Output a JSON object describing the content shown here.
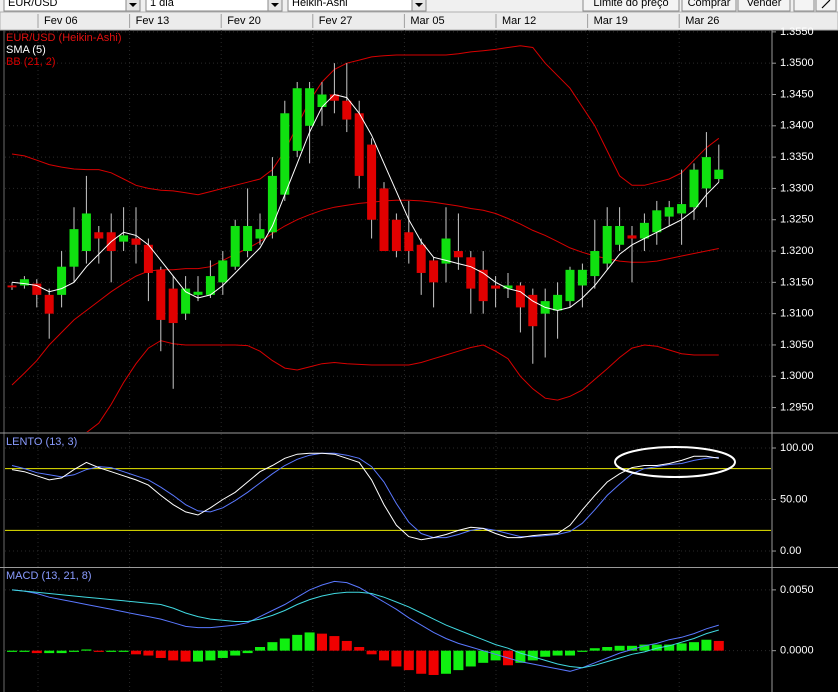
{
  "toolbar": {
    "symbol": "EUR/USD",
    "interval": "1 dia",
    "chart_style": "Heikin-Ashi",
    "buttons": [
      "Limite do preço",
      "Comprar",
      "Vender"
    ]
  },
  "dates": [
    "Fev 06",
    "Fev 13",
    "Fev 20",
    "Fev 27",
    "Mar 05",
    "Mar 12",
    "Mar 19",
    "Mar 26"
  ],
  "chart_data": [
    {
      "type": "candlestick",
      "title": "EUR/USD (Heikin-Ashi)",
      "title_color": "#e01010",
      "grid": true,
      "ylim": [
        1.2911,
        1.3553
      ],
      "yticks": [
        {
          "value": 1.355,
          "label": "1.3550"
        },
        {
          "value": 1.35,
          "label": "1.3500"
        },
        {
          "value": 1.345,
          "label": "1.3450"
        },
        {
          "value": 1.34,
          "label": "1.3400"
        },
        {
          "value": 1.335,
          "label": "1.3350"
        },
        {
          "value": 1.33,
          "label": "1.3300"
        },
        {
          "value": 1.325,
          "label": "1.3250"
        },
        {
          "value": 1.32,
          "label": "1.3200"
        },
        {
          "value": 1.315,
          "label": "1.3150"
        },
        {
          "value": 1.31,
          "label": "1.3100"
        },
        {
          "value": 1.305,
          "label": "1.3050"
        },
        {
          "value": 1.3,
          "label": "1.3000"
        },
        {
          "value": 1.295,
          "label": "1.2950"
        }
      ],
      "candles": {
        "up_color": "#10e010",
        "down_color": "#e00000",
        "open": [
          1.3145,
          1.3145,
          1.3148,
          1.313,
          1.313,
          1.3175,
          1.32,
          1.323,
          1.323,
          1.3215,
          1.322,
          1.321,
          1.317,
          1.314,
          1.31,
          1.313,
          1.313,
          1.315,
          1.3175,
          1.32,
          1.322,
          1.323,
          1.329,
          1.336,
          1.34,
          1.343,
          1.345,
          1.344,
          1.342,
          1.337,
          1.33,
          1.325,
          1.323,
          1.321,
          1.3185,
          1.318,
          1.32,
          1.319,
          1.317,
          1.3145,
          1.314,
          1.3145,
          1.313,
          1.31,
          1.3105,
          1.312,
          1.3145,
          1.316,
          1.318,
          1.321,
          1.3225,
          1.322,
          1.323,
          1.3255,
          1.326,
          1.327,
          1.33,
          1.3315
        ],
        "high": [
          1.315,
          1.316,
          1.3155,
          1.314,
          1.32,
          1.327,
          1.332,
          1.324,
          1.326,
          1.327,
          1.327,
          1.322,
          1.3175,
          1.316,
          1.316,
          1.316,
          1.3185,
          1.32,
          1.325,
          1.33,
          1.326,
          1.335,
          1.344,
          1.347,
          1.347,
          1.347,
          1.35,
          1.35,
          1.344,
          1.338,
          1.331,
          1.326,
          1.328,
          1.322,
          1.319,
          1.327,
          1.326,
          1.32,
          1.32,
          1.316,
          1.3165,
          1.315,
          1.314,
          1.314,
          1.315,
          1.3175,
          1.318,
          1.325,
          1.327,
          1.327,
          1.324,
          1.326,
          1.328,
          1.328,
          1.333,
          1.334,
          1.339,
          1.337
        ],
        "low": [
          1.3138,
          1.314,
          1.311,
          1.306,
          1.311,
          1.315,
          1.318,
          1.318,
          1.315,
          1.32,
          1.318,
          1.312,
          1.304,
          1.298,
          1.309,
          1.312,
          1.3125,
          1.313,
          1.317,
          1.319,
          1.321,
          1.322,
          1.328,
          1.335,
          1.334,
          1.34,
          1.342,
          1.339,
          1.33,
          1.322,
          1.32,
          1.319,
          1.318,
          1.313,
          1.311,
          1.315,
          1.317,
          1.31,
          1.31,
          1.311,
          1.3125,
          1.307,
          1.302,
          1.303,
          1.306,
          1.311,
          1.311,
          1.314,
          1.317,
          1.32,
          1.315,
          1.32,
          1.321,
          1.324,
          1.321,
          1.325,
          1.327,
          1.331
        ],
        "close": [
          1.3142,
          1.3155,
          1.313,
          1.31,
          1.3175,
          1.3235,
          1.326,
          1.322,
          1.32,
          1.3225,
          1.321,
          1.3165,
          1.309,
          1.3085,
          1.314,
          1.3135,
          1.316,
          1.3185,
          1.324,
          1.324,
          1.3235,
          1.332,
          1.342,
          1.346,
          1.346,
          1.345,
          1.344,
          1.341,
          1.332,
          1.325,
          1.32,
          1.32,
          1.32,
          1.3165,
          1.315,
          1.322,
          1.319,
          1.314,
          1.312,
          1.314,
          1.3145,
          1.311,
          1.308,
          1.312,
          1.313,
          1.317,
          1.317,
          1.32,
          1.324,
          1.324,
          1.322,
          1.3245,
          1.3265,
          1.327,
          1.3275,
          1.333,
          1.335,
          1.333
        ]
      },
      "series": [
        {
          "name": "SMA (5)",
          "color": "#ffffff",
          "values": [
            1.315,
            1.3148,
            1.3145,
            1.3135,
            1.314,
            1.315,
            1.3175,
            1.3195,
            1.3215,
            1.323,
            1.3225,
            1.321,
            1.3185,
            1.316,
            1.3135,
            1.3125,
            1.313,
            1.3145,
            1.3165,
            1.3185,
            1.3205,
            1.324,
            1.329,
            1.334,
            1.339,
            1.343,
            1.345,
            1.3445,
            1.342,
            1.3385,
            1.334,
            1.3295,
            1.325,
            1.3215,
            1.319,
            1.3185,
            1.318,
            1.3175,
            1.3165,
            1.315,
            1.314,
            1.3135,
            1.312,
            1.311,
            1.3105,
            1.311,
            1.3125,
            1.3145,
            1.317,
            1.3195,
            1.321,
            1.322,
            1.323,
            1.324,
            1.325,
            1.3265,
            1.329,
            1.331
          ]
        },
        {
          "name": "BB (21, 2)",
          "color": "#d80000",
          "upper": [
            1.3355,
            1.3352,
            1.3345,
            1.3338,
            1.3334,
            1.3331,
            1.333,
            1.333,
            1.3325,
            1.3315,
            1.3305,
            1.33,
            1.3297,
            1.3296,
            1.3293,
            1.329,
            1.3295,
            1.33,
            1.3305,
            1.331,
            1.3315,
            1.333,
            1.336,
            1.34,
            1.344,
            1.347,
            1.349,
            1.35,
            1.3505,
            1.351,
            1.3512,
            1.3513,
            1.3513,
            1.3513,
            1.3513,
            1.3513,
            1.3515,
            1.3518,
            1.352,
            1.3522,
            1.3525,
            1.3528,
            1.3525,
            1.35,
            1.348,
            1.346,
            1.343,
            1.34,
            1.336,
            1.332,
            1.3305,
            1.3305,
            1.331,
            1.3315,
            1.3325,
            1.3345,
            1.3365,
            1.338
          ],
          "middle": [
            1.2986,
            1.3005,
            1.3025,
            1.305,
            1.307,
            1.309,
            1.3105,
            1.312,
            1.3135,
            1.3148,
            1.316,
            1.3168,
            1.317,
            1.317,
            1.3172,
            1.3172,
            1.3175,
            1.3185,
            1.3195,
            1.3204,
            1.3215,
            1.3228,
            1.324,
            1.325,
            1.3258,
            1.3265,
            1.327,
            1.3273,
            1.3276,
            1.3278,
            1.328,
            1.3281,
            1.3281,
            1.328,
            1.3278,
            1.3275,
            1.3272,
            1.3268,
            1.3265,
            1.326,
            1.3252,
            1.3243,
            1.3233,
            1.3225,
            1.3215,
            1.3205,
            1.3198,
            1.3192,
            1.3188,
            1.3184,
            1.3182,
            1.3182,
            1.3184,
            1.3188,
            1.3192,
            1.3196,
            1.32,
            1.3204
          ],
          "lower": [
            1.276,
            1.279,
            1.282,
            1.285,
            1.287,
            1.289,
            1.291,
            1.2925,
            1.2955,
            1.299,
            1.302,
            1.3045,
            1.3057,
            1.3052,
            1.305,
            1.305,
            1.305,
            1.305,
            1.305,
            1.3049,
            1.304,
            1.3025,
            1.3013,
            1.301,
            1.3015,
            1.302,
            1.3022,
            1.302,
            1.3019,
            1.3018,
            1.3018,
            1.3018,
            1.3018,
            1.3022,
            1.3028,
            1.3034,
            1.304,
            1.3046,
            1.305,
            1.304,
            1.3028,
            1.3,
            1.298,
            1.2965,
            1.2962,
            1.2968,
            1.2978,
            1.2995,
            1.3012,
            1.303,
            1.3045,
            1.305,
            1.3048,
            1.3042,
            1.3036,
            1.3034,
            1.3034,
            1.3034
          ]
        }
      ]
    },
    {
      "type": "line",
      "title": "LENTO (13, 3)",
      "title_color": "#8a9cff",
      "grid": true,
      "ylim": [
        -15.5,
        113.6
      ],
      "yticks": [
        {
          "value": 100,
          "label": "100.00"
        },
        {
          "value": 50,
          "label": "50.00"
        },
        {
          "value": 0,
          "label": "0.00"
        }
      ],
      "levels": {
        "values": [
          80,
          20
        ],
        "color": "#e8e800"
      },
      "series": [
        {
          "color": "#ffffff",
          "values": [
            79,
            77,
            73,
            69,
            71,
            79,
            86,
            81,
            77,
            73,
            69,
            64,
            54,
            45,
            38,
            35,
            42,
            50,
            57,
            67,
            77,
            83,
            90,
            94,
            95,
            95,
            94,
            90,
            86,
            69,
            45,
            25,
            14,
            11,
            13,
            16,
            20,
            23,
            22,
            17,
            13,
            13,
            15,
            16,
            17,
            25,
            40,
            54,
            67,
            75,
            81,
            83,
            83,
            85,
            88,
            92,
            92,
            90
          ]
        },
        {
          "color": "#5a78ff",
          "values": [
            83,
            80,
            76,
            74,
            72,
            74,
            79,
            82,
            81,
            77,
            73,
            69,
            62,
            54,
            45,
            39,
            38,
            42,
            49,
            57,
            66,
            75,
            83,
            89,
            93,
            95,
            95,
            93,
            90,
            82,
            67,
            46,
            28,
            17,
            13,
            13,
            16,
            20,
            22,
            20,
            17,
            14,
            14,
            15,
            16,
            19,
            27,
            40,
            54,
            65,
            75,
            80,
            82,
            84,
            85,
            88,
            90,
            91
          ]
        }
      ]
    },
    {
      "type": "macd",
      "title": "MACD (13, 21, 8)",
      "title_color": "#8a9cff",
      "grid": true,
      "ylim": [
        -0.0034,
        0.0068
      ],
      "yticks": [
        {
          "value": 0.005,
          "label": "0.0050"
        },
        {
          "value": 0,
          "label": "0.0000"
        }
      ],
      "series": [
        {
          "color": "#5a78ff",
          "values": [
            0.005,
            0.0049,
            0.0047,
            0.0044,
            0.0042,
            0.004,
            0.0038,
            0.0036,
            0.0034,
            0.0032,
            0.003,
            0.0028,
            0.0026,
            0.0023,
            0.002,
            0.0019,
            0.0019,
            0.002,
            0.0021,
            0.0023,
            0.0028,
            0.0033,
            0.0038,
            0.0044,
            0.005,
            0.0054,
            0.0057,
            0.0056,
            0.0052,
            0.0046,
            0.004,
            0.0034,
            0.0027,
            0.0021,
            0.0015,
            0.001,
            0.0006,
            0.0003,
            0.0,
            -0.0003,
            -0.0006,
            -0.0009,
            -0.0011,
            -0.0013,
            -0.0015,
            -0.0017,
            -0.0014,
            -0.001,
            -0.0006,
            -0.0002,
            0.0001,
            0.0004,
            0.0006,
            0.0009,
            0.0011,
            0.0014,
            0.0018,
            0.0021
          ]
        },
        {
          "color": "#40d8e0",
          "values": [
            0.005,
            0.0049,
            0.0048,
            0.0047,
            0.0046,
            0.0045,
            0.0044,
            0.0043,
            0.0042,
            0.0041,
            0.004,
            0.0039,
            0.0038,
            0.0035,
            0.0031,
            0.0028,
            0.0026,
            0.0025,
            0.0024,
            0.0024,
            0.0026,
            0.0029,
            0.0033,
            0.0038,
            0.0042,
            0.0045,
            0.0047,
            0.0048,
            0.0048,
            0.0047,
            0.0044,
            0.004,
            0.0036,
            0.0031,
            0.0026,
            0.0021,
            0.0017,
            0.0013,
            0.0009,
            0.0005,
            0.0002,
            -0.0002,
            -0.0005,
            -0.0008,
            -0.0011,
            -0.0013,
            -0.0014,
            -0.0012,
            -0.0009,
            -0.0006,
            -0.0003,
            -0.0001,
            0.0002,
            0.0004,
            0.0007,
            0.001,
            0.0014,
            0.0017
          ]
        }
      ],
      "histogram": {
        "up_color": "#10f010",
        "down_color": "#f00000",
        "values": [
          -0.0001,
          -0.0001,
          -0.0002,
          -0.0002,
          -0.0002,
          -0.0001,
          0.0001,
          -0.0001,
          -0.0001,
          -0.0001,
          -0.0003,
          -0.0004,
          -0.0006,
          -0.0008,
          -0.0009,
          -0.0009,
          -0.0008,
          -0.0006,
          -0.0004,
          -0.0002,
          0.0003,
          0.0007,
          0.001,
          0.0013,
          0.0015,
          0.0014,
          0.0012,
          0.0008,
          0.0003,
          -0.0003,
          -0.0008,
          -0.0013,
          -0.0016,
          -0.0019,
          -0.002,
          -0.0019,
          -0.0016,
          -0.0013,
          -0.001,
          -0.0008,
          -0.0012,
          -0.001,
          -0.0008,
          -0.0005,
          -0.0004,
          -0.0004,
          -0.0001,
          0.0002,
          0.0003,
          0.0004,
          0.0004,
          0.0005,
          0.0005,
          0.0005,
          0.0006,
          0.0007,
          0.0009,
          0.0008
        ]
      }
    }
  ]
}
